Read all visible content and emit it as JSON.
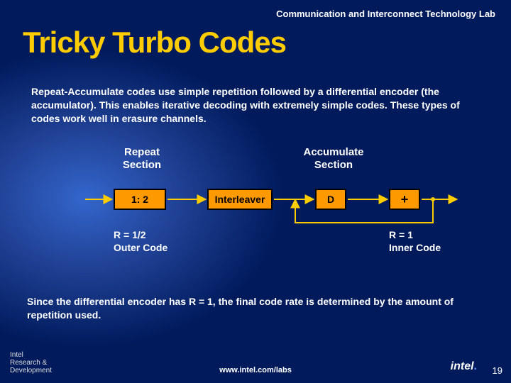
{
  "colors": {
    "bg_deep": "#001a5c",
    "bg_glow": "#3366cc",
    "accent": "#ffcc00",
    "node_fill": "#ff9900",
    "node_border": "#000000",
    "text": "#ffffff",
    "arrow": "#ffcc00"
  },
  "header": {
    "lab": "Communication and Interconnect Technology Lab"
  },
  "title": "Tricky Turbo Codes",
  "intro": "Repeat-Accumulate codes use simple repetition followed by a differential encoder (the accumulator). This enables iterative decoding with extremely simple codes. These types of codes work well in erasure channels.",
  "diagram": {
    "type": "flowchart",
    "section_labels": {
      "repeat": "Repeat\nSection",
      "accumulate": "Accumulate\nSection"
    },
    "nodes": {
      "ratio": "1: 2",
      "interleaver": "Interleaver",
      "d": "D",
      "plus": "+"
    },
    "annotations": {
      "outer": "R = 1/2\nOuter Code",
      "inner": "R = 1\nInner Code"
    },
    "node_style": {
      "fill": "#ff9900",
      "border": "#000000",
      "border_width": 2,
      "font_size": 14,
      "font_weight": "bold"
    },
    "arrow_style": {
      "stroke": "#ffcc00",
      "width": 2
    },
    "edges": [
      {
        "from": "input",
        "to": "ratio"
      },
      {
        "from": "ratio",
        "to": "interleaver"
      },
      {
        "from": "interleaver",
        "to": "d"
      },
      {
        "from": "d",
        "to": "plus"
      },
      {
        "from": "plus",
        "to": "output"
      },
      {
        "from": "plus",
        "to": "d",
        "kind": "feedback"
      }
    ]
  },
  "conclusion": "Since the differential encoder has R = 1, the final code rate is determined by the amount of repetition used.",
  "footer": {
    "left": "Intel\nResearch &\nDevelopment",
    "center": "www.intel.com/labs",
    "logo": "intel",
    "page": "19"
  }
}
